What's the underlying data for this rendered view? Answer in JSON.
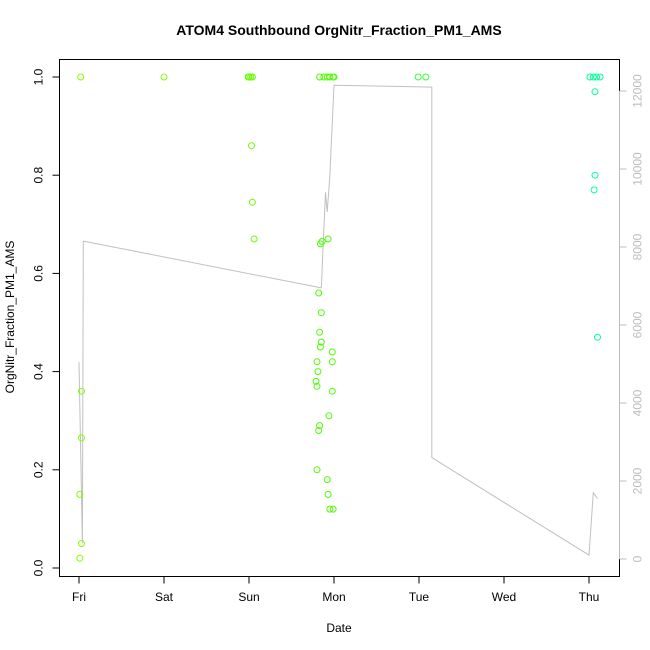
{
  "chart_data": {
    "type": "scatter",
    "title": "ATOM4 Southbound OrgNitr_Fraction_PM1_AMS",
    "xlabel": "Date",
    "ylabel": "OrgNitr_Fraction_PM1_AMS",
    "x_ticks": [
      "Fri",
      "Sat",
      "Sun",
      "Mon",
      "Tue",
      "Wed",
      "Thu"
    ],
    "y_ticks": [
      "0.0",
      "0.2",
      "0.4",
      "0.6",
      "0.8",
      "1.0"
    ],
    "y_right_ticks": [
      "0",
      "2000",
      "4000",
      "6000",
      "8000",
      "10000",
      "12000"
    ],
    "xlim": [
      -0.05,
      6.05
    ],
    "ylim": [
      -0.02,
      1.02
    ],
    "y_right_lim": [
      -300,
      12300
    ],
    "points": [
      {
        "x": 0.01,
        "y": 0.02,
        "color": "#7fff00"
      },
      {
        "x": 0.01,
        "y": 0.15,
        "color": "#7fff00"
      },
      {
        "x": 0.03,
        "y": 0.05,
        "color": "#7fff00"
      },
      {
        "x": 0.03,
        "y": 0.36,
        "color": "#7fff00"
      },
      {
        "x": 0.03,
        "y": 0.265,
        "color": "#7fff00"
      },
      {
        "x": 0.02,
        "y": 1.0,
        "color": "#7fff00"
      },
      {
        "x": 1.0,
        "y": 1.0,
        "color": "#7fff00"
      },
      {
        "x": 1.99,
        "y": 1.0,
        "color": "#66ff00"
      },
      {
        "x": 2.0,
        "y": 1.0,
        "color": "#66ff00"
      },
      {
        "x": 2.02,
        "y": 1.0,
        "color": "#66ff00"
      },
      {
        "x": 2.04,
        "y": 1.0,
        "color": "#66ff00"
      },
      {
        "x": 2.03,
        "y": 0.86,
        "color": "#66ff00"
      },
      {
        "x": 2.04,
        "y": 0.745,
        "color": "#66ff00"
      },
      {
        "x": 2.06,
        "y": 0.67,
        "color": "#66ff00"
      },
      {
        "x": 2.8,
        "y": 0.2,
        "color": "#4cff00"
      },
      {
        "x": 2.8,
        "y": 0.37,
        "color": "#4cff00"
      },
      {
        "x": 2.79,
        "y": 0.38,
        "color": "#4cff00"
      },
      {
        "x": 2.81,
        "y": 0.4,
        "color": "#4cff00"
      },
      {
        "x": 2.8,
        "y": 0.42,
        "color": "#4cff00"
      },
      {
        "x": 2.82,
        "y": 0.28,
        "color": "#4cff00"
      },
      {
        "x": 2.83,
        "y": 0.29,
        "color": "#4cff00"
      },
      {
        "x": 2.84,
        "y": 0.45,
        "color": "#4cff00"
      },
      {
        "x": 2.85,
        "y": 0.46,
        "color": "#4cff00"
      },
      {
        "x": 2.83,
        "y": 0.48,
        "color": "#4cff00"
      },
      {
        "x": 2.85,
        "y": 0.52,
        "color": "#4cff00"
      },
      {
        "x": 2.82,
        "y": 0.56,
        "color": "#4cff00"
      },
      {
        "x": 2.84,
        "y": 0.66,
        "color": "#4cff00"
      },
      {
        "x": 2.86,
        "y": 0.665,
        "color": "#4cff00"
      },
      {
        "x": 2.93,
        "y": 0.67,
        "color": "#4cff00"
      },
      {
        "x": 2.83,
        "y": 1.0,
        "color": "#4cff00"
      },
      {
        "x": 2.88,
        "y": 1.0,
        "color": "#4cff00"
      },
      {
        "x": 2.92,
        "y": 1.0,
        "color": "#4cff00"
      },
      {
        "x": 2.95,
        "y": 1.0,
        "color": "#4cff00"
      },
      {
        "x": 2.99,
        "y": 1.0,
        "color": "#4cff00"
      },
      {
        "x": 3.0,
        "y": 1.0,
        "color": "#4cff00"
      },
      {
        "x": 2.92,
        "y": 0.18,
        "color": "#4cff00"
      },
      {
        "x": 2.93,
        "y": 0.15,
        "color": "#4cff00"
      },
      {
        "x": 2.95,
        "y": 0.12,
        "color": "#4cff00"
      },
      {
        "x": 2.99,
        "y": 0.12,
        "color": "#4cff00"
      },
      {
        "x": 2.94,
        "y": 0.31,
        "color": "#4cff00"
      },
      {
        "x": 2.98,
        "y": 0.36,
        "color": "#4cff00"
      },
      {
        "x": 2.98,
        "y": 0.42,
        "color": "#4cff00"
      },
      {
        "x": 2.98,
        "y": 0.44,
        "color": "#4cff00"
      },
      {
        "x": 3.99,
        "y": 1.0,
        "color": "#33ff33"
      },
      {
        "x": 4.08,
        "y": 1.0,
        "color": "#33ff33"
      },
      {
        "x": 6.01,
        "y": 1.0,
        "color": "#00ff99"
      },
      {
        "x": 6.05,
        "y": 1.0,
        "color": "#00ff99"
      },
      {
        "x": 6.09,
        "y": 1.0,
        "color": "#00ff99"
      },
      {
        "x": 6.13,
        "y": 1.0,
        "color": "#00ff99"
      },
      {
        "x": 6.07,
        "y": 0.97,
        "color": "#00ff99"
      },
      {
        "x": 6.07,
        "y": 0.8,
        "color": "#00ff99"
      },
      {
        "x": 6.06,
        "y": 0.77,
        "color": "#00ff99"
      },
      {
        "x": 6.1,
        "y": 0.47,
        "color": "#00ff99"
      }
    ],
    "altitude_line": {
      "axis": "right",
      "color": "#c0c0c0",
      "points": [
        {
          "x": 0.0,
          "y": 5050
        },
        {
          "x": 0.04,
          "y": 400
        },
        {
          "x": 0.05,
          "y": 8150
        },
        {
          "x": 2.85,
          "y": 6950
        },
        {
          "x": 2.9,
          "y": 9400
        },
        {
          "x": 2.92,
          "y": 8900
        },
        {
          "x": 2.95,
          "y": 9800
        },
        {
          "x": 3.0,
          "y": 12150
        },
        {
          "x": 4.15,
          "y": 12100
        },
        {
          "x": 4.15,
          "y": 2600
        },
        {
          "x": 6.0,
          "y": 100
        },
        {
          "x": 6.05,
          "y": 1700
        },
        {
          "x": 6.1,
          "y": 1550
        }
      ]
    }
  }
}
